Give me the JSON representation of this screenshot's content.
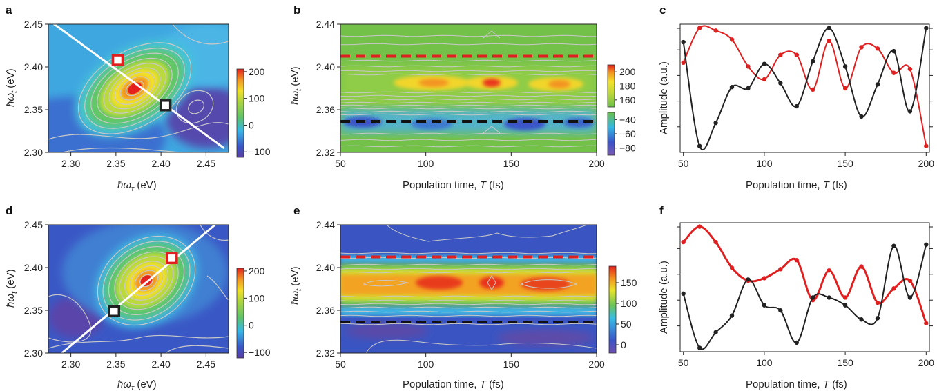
{
  "panels": {
    "a": {
      "letter": "a"
    },
    "b": {
      "letter": "b"
    },
    "c": {
      "letter": "c"
    },
    "d": {
      "letter": "d"
    },
    "e": {
      "letter": "e"
    },
    "f": {
      "letter": "f"
    }
  },
  "colors": {
    "red": "#e02020",
    "black": "#222222",
    "contour": "#c8c8c8",
    "dash_red": "#e02020",
    "dash_black": "#111111"
  },
  "labels": {
    "y_wt": "ħω",
    "y_wt_sub": "t",
    "y_unit": " (eV)",
    "x_wtau": "ħω",
    "x_wtau_sub": "τ",
    "x_pop": "Population time, ",
    "x_pop_T": "T",
    "x_pop_unit": " (fs)",
    "amp": "Amplitude (a.u.)"
  },
  "chart_data": [
    {
      "id": "a",
      "type": "heatmap",
      "xlabel": "ħωτ (eV)",
      "ylabel": "ħωt (eV)",
      "xlim": [
        2.275,
        2.475
      ],
      "ylim": [
        2.3,
        2.45
      ],
      "xticks": [
        2.3,
        2.35,
        2.4,
        2.45
      ],
      "yticks": [
        2.3,
        2.35,
        2.4,
        2.45
      ],
      "colorbar": {
        "ticks": [
          200,
          100,
          0,
          -100
        ],
        "range": [
          -120,
          210
        ]
      },
      "diagonal": {
        "from": [
          2.275,
          2.455
        ],
        "to": [
          2.47,
          2.305
        ]
      },
      "markers": [
        {
          "color": "red",
          "x": 2.352,
          "y": 2.408
        },
        {
          "color": "black",
          "x": 2.405,
          "y": 2.355
        }
      ]
    },
    {
      "id": "b",
      "type": "heatmap",
      "xlabel": "Population time, T (fs)",
      "ylabel": "ħωt (eV)",
      "xlim": [
        50,
        200
      ],
      "ylim": [
        2.32,
        2.44
      ],
      "xticks": [
        50,
        100,
        150,
        200
      ],
      "yticks": [
        2.32,
        2.36,
        2.4,
        2.44
      ],
      "colorbar_upper": {
        "ticks": [
          200,
          180,
          160
        ],
        "range": [
          150,
          210
        ]
      },
      "colorbar_lower": {
        "ticks": [
          -40,
          -60,
          -80
        ],
        "range": [
          -90,
          -30
        ]
      },
      "dashes": [
        {
          "color": "red",
          "y": 2.41
        },
        {
          "color": "black",
          "y": 2.349
        }
      ]
    },
    {
      "id": "c",
      "type": "line",
      "xlabel": "Population time, T (fs)",
      "ylabel": "Amplitude (a.u.)",
      "xlim": [
        48,
        202
      ],
      "xticks": [
        50,
        100,
        150,
        200
      ],
      "series": [
        {
          "color": "red",
          "x": [
            50,
            60,
            70,
            80,
            90,
            100,
            110,
            120,
            130,
            140,
            150,
            160,
            170,
            180,
            190,
            200
          ],
          "values": [
            0.7,
            0.97,
            0.95,
            0.88,
            0.67,
            0.57,
            0.76,
            0.76,
            0.49,
            0.87,
            0.5,
            0.82,
            0.81,
            0.62,
            0.65,
            0.05
          ]
        },
        {
          "color": "black",
          "x": [
            50,
            60,
            70,
            80,
            90,
            100,
            110,
            120,
            130,
            140,
            150,
            160,
            170,
            180,
            190,
            200
          ],
          "values": [
            0.86,
            0.05,
            0.23,
            0.51,
            0.5,
            0.69,
            0.54,
            0.36,
            0.71,
            0.97,
            0.67,
            0.28,
            0.53,
            0.79,
            0.32,
            0.97
          ]
        }
      ]
    },
    {
      "id": "d",
      "type": "heatmap",
      "xlabel": "ħωτ (eV)",
      "ylabel": "ħωt (eV)",
      "xlim": [
        2.275,
        2.475
      ],
      "ylim": [
        2.3,
        2.45
      ],
      "xticks": [
        2.3,
        2.35,
        2.4,
        2.45
      ],
      "yticks": [
        2.3,
        2.35,
        2.4,
        2.45
      ],
      "colorbar": {
        "ticks": [
          200,
          100,
          0,
          -100
        ],
        "range": [
          -120,
          210
        ]
      },
      "diagonal": {
        "from": [
          2.29,
          2.3
        ],
        "to": [
          2.46,
          2.45
        ]
      },
      "markers": [
        {
          "color": "red",
          "x": 2.412,
          "y": 2.411
        },
        {
          "color": "black",
          "x": 2.348,
          "y": 2.349
        }
      ]
    },
    {
      "id": "e",
      "type": "heatmap",
      "xlabel": "Population time, T (fs)",
      "ylabel": "ħωt (eV)",
      "xlim": [
        50,
        200
      ],
      "ylim": [
        2.32,
        2.44
      ],
      "xticks": [
        50,
        100,
        150,
        200
      ],
      "yticks": [
        2.32,
        2.36,
        2.4,
        2.44
      ],
      "colorbar": {
        "ticks": [
          150,
          100,
          50,
          0
        ],
        "range": [
          -20,
          190
        ]
      },
      "dashes": [
        {
          "color": "red",
          "y": 2.41
        },
        {
          "color": "black",
          "y": 2.349
        }
      ]
    },
    {
      "id": "f",
      "type": "line",
      "xlabel": "Population time, T (fs)",
      "ylabel": "Amplitude (a.u.)",
      "xlim": [
        48,
        202
      ],
      "xticks": [
        50,
        100,
        150,
        200
      ],
      "series": [
        {
          "color": "red",
          "x": [
            50,
            60,
            70,
            80,
            90,
            100,
            110,
            120,
            130,
            140,
            150,
            160,
            170,
            180,
            190,
            200
          ],
          "values": [
            0.85,
            0.97,
            0.85,
            0.65,
            0.55,
            0.57,
            0.64,
            0.71,
            0.4,
            0.63,
            0.42,
            0.66,
            0.38,
            0.49,
            0.55,
            0.22
          ]
        },
        {
          "color": "black",
          "x": [
            50,
            60,
            70,
            80,
            90,
            100,
            110,
            120,
            130,
            140,
            150,
            160,
            170,
            180,
            190,
            200
          ],
          "values": [
            0.45,
            0.03,
            0.15,
            0.28,
            0.56,
            0.36,
            0.32,
            0.07,
            0.42,
            0.42,
            0.36,
            0.25,
            0.26,
            0.82,
            0.42,
            0.83
          ]
        }
      ]
    }
  ]
}
